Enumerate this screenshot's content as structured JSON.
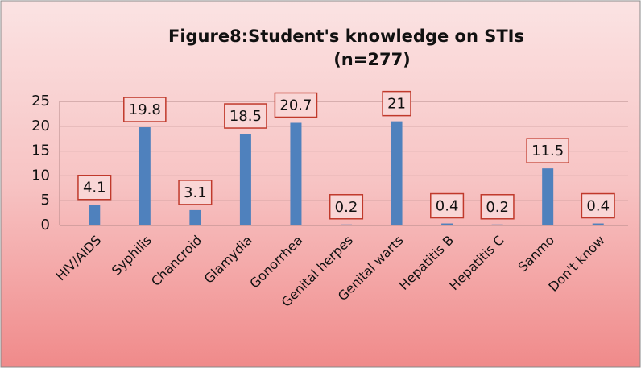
{
  "chart_data": {
    "type": "bar",
    "title": "Figure8:Student's knowledge on STIs",
    "subtitle": "(n=277)",
    "categories": [
      "HIV/AIDS",
      "Syphilis",
      "Chancroid",
      "Glamydia",
      "Gonorrhea",
      "Genital herpes",
      "Genital warts",
      "Hepatitis B",
      "Hepatitis C",
      "Sanmo",
      "Don't know"
    ],
    "values": [
      4.1,
      19.8,
      3.1,
      18.5,
      20.7,
      0.2,
      21,
      0.4,
      0.2,
      11.5,
      0.4
    ],
    "color": "#4f81bd",
    "ylim": [
      0,
      25
    ],
    "yticks": [
      0,
      5,
      10,
      15,
      20,
      25
    ],
    "grid": true
  }
}
